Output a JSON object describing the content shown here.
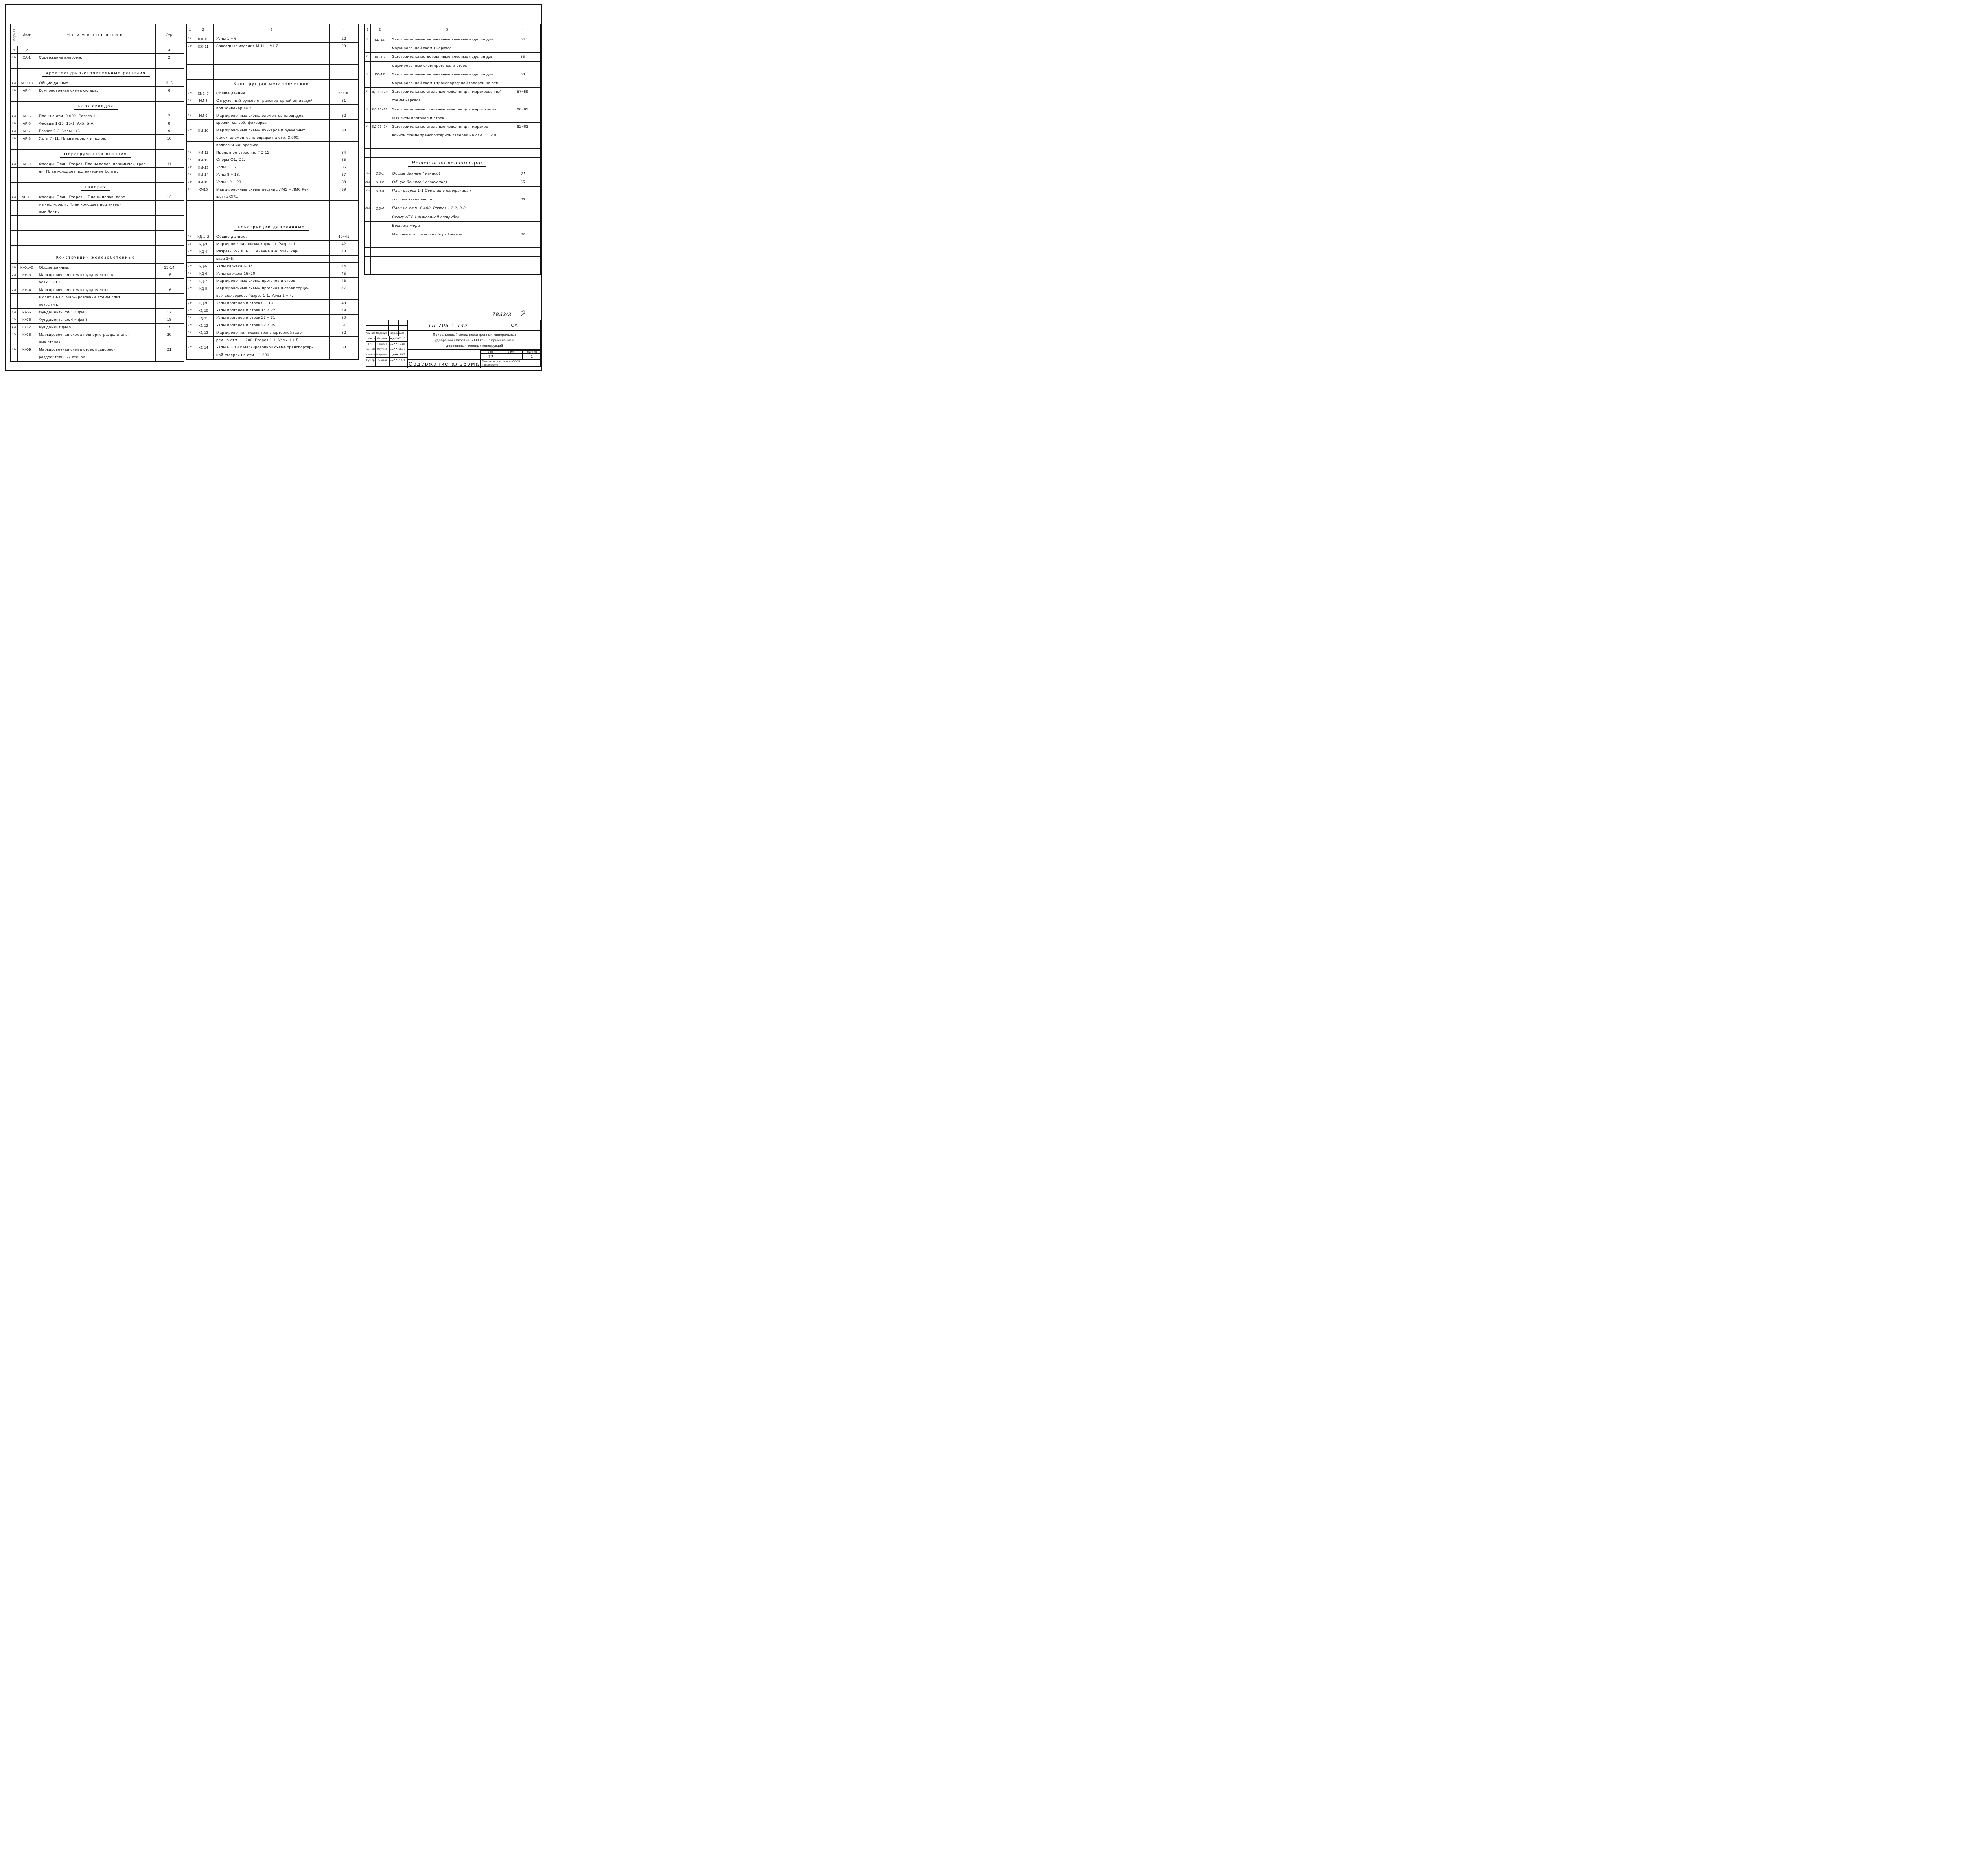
{
  "stamp": {
    "doc_no": "7833/3",
    "page_no": "2",
    "type_label": "ТП 705-1-142",
    "code": "СА",
    "rev_headers": [
      "Изм.",
      "Лист",
      "№ докум.",
      "Подпись",
      "Дата"
    ],
    "signers": [
      {
        "role": "Гл.инж.ин.",
        "name": "Хахалин",
        "date": "15.10"
      },
      {
        "role": "ГИП",
        "name": "Гоголев",
        "date": "15.10."
      },
      {
        "role": "Нач. отд.",
        "name": "Крупков",
        "date": "20.10"
      },
      {
        "role": "Гл. констр.",
        "name": "Морозова",
        "date": "9.10.79"
      },
      {
        "role": "Рук. гр.",
        "name": "Аникин",
        "date": "17.9.79г"
      }
    ],
    "title_lines": [
      "Прирельсовый  склад незатаренных минеральных",
      "удобрений емкостью 5000 тонн с применением",
      "деревянных  клееных  конструкций"
    ],
    "lit_headers": [
      "Лит",
      "Лист",
      "Листов"
    ],
    "lit_values": [
      "ТР",
      "",
      "1"
    ],
    "album_title": "Содержание альбома",
    "org_lines": [
      "Госкомсельхозтехника СССР",
      "Гипропроект"
    ]
  },
  "left_table": {
    "header": {
      "format_label": "Формат",
      "sheet_label": "Лист",
      "name_label": "Наименование",
      "page_label": "Стр."
    },
    "numbers": [
      "1",
      "2",
      "3",
      "4"
    ],
    "rows": [
      [
        "22г",
        "СА-1",
        "Содержание  альбома.",
        "2",
        ""
      ],
      [
        "",
        "",
        "",
        "",
        ""
      ],
      [
        "",
        "",
        "Архитектурно-строительные решения",
        "",
        "s"
      ],
      [
        "22г",
        "АР-1÷3",
        "Общие  данные",
        "3÷5",
        ""
      ],
      [
        "22г",
        "АР-4",
        "Компоновочная схема склада.",
        "6",
        ""
      ],
      [
        "",
        "",
        "",
        "",
        ""
      ],
      [
        "",
        "",
        "Блок складов",
        "",
        "s"
      ],
      [
        "22г",
        "АР-5",
        "План на отм. 0.000.  Разрез 1-1.",
        "7",
        ""
      ],
      [
        "22г",
        "АР-6",
        "Фасады  1-15, 15-1, А-Б, Б-А.",
        "8",
        ""
      ],
      [
        "22г",
        "АР-7",
        "Разрез  2-2.  Узлы  1÷6.",
        "9",
        ""
      ],
      [
        "22г",
        "АР-8",
        "Узлы  7÷11. Планы кровли и полов.",
        "10",
        ""
      ],
      [
        "",
        "",
        "",
        "",
        ""
      ],
      [
        "",
        "",
        "Перегрузочная станция",
        "",
        "s"
      ],
      [
        "22г",
        "АР-9",
        "Фасады. План. Разрез. Планы полов, перемычек, кров-",
        "11",
        ""
      ],
      [
        "",
        "",
        "ли.  План колодцев  под  анкерные  болты.",
        "",
        ""
      ],
      [
        "",
        "",
        "",
        "",
        ""
      ],
      [
        "",
        "",
        "Галерея",
        "",
        "s"
      ],
      [
        "22г",
        "АР-10",
        "Фасады.  План.  Разрезы.  Планы полов, пере-",
        "12",
        ""
      ],
      [
        "",
        "",
        "мычек, кровли.  План  колодцев  под  анкер-",
        "",
        ""
      ],
      [
        "",
        "",
        "ные    болты.",
        "",
        ""
      ],
      [
        "",
        "",
        "",
        "",
        ""
      ],
      [
        "",
        "",
        "",
        "",
        ""
      ],
      [
        "",
        "",
        "",
        "",
        ""
      ],
      [
        "",
        "",
        "",
        "",
        ""
      ],
      [
        "",
        "",
        "",
        "",
        ""
      ],
      [
        "",
        "",
        "Конструкции железобетонные",
        "",
        "s"
      ],
      [
        "22г",
        "КЖ-1÷2",
        "Общие  данные.",
        "13-14",
        ""
      ],
      [
        "22г",
        "КЖ-3",
        "Маркировочная  схема  фундаментов  в",
        "15",
        ""
      ],
      [
        "",
        "",
        "осях  1 - 13.",
        "",
        ""
      ],
      [
        "22г",
        "КЖ-4",
        "Маркировочная  схема  фундаментов",
        "16",
        ""
      ],
      [
        "",
        "",
        "в осях  13-17. Маркировочные  схемы  плит",
        "",
        ""
      ],
      [
        "",
        "",
        "покрытия.",
        "",
        ""
      ],
      [
        "22г",
        "КЖ-5",
        "Фундаменты   фм1 ÷ фм 3.",
        "17",
        ""
      ],
      [
        "22г",
        "КЖ-6",
        "Фундаменты   фм4 ÷ фм 8.",
        "18",
        ""
      ],
      [
        "22г",
        "КЖ-7",
        "Фундамент   фм 9.",
        "19",
        ""
      ],
      [
        "22г",
        "КЖ-8",
        "Маркировочная  схема  подпорно-разделитель-",
        "20",
        ""
      ],
      [
        "",
        "",
        "ных  стенок.",
        "",
        ""
      ],
      [
        "22г",
        "КЖ-9",
        "Маркировочная  схема  стоек  подпорно-",
        "21",
        ""
      ],
      [
        "",
        "",
        "разделительных  стенок.",
        "",
        ""
      ]
    ]
  },
  "middle_table": {
    "numbers": [
      "1",
      "2",
      "3",
      "4"
    ],
    "rows": [
      [
        "22г",
        "КЖ-10",
        "Узлы  1 ÷ 6.",
        "22",
        ""
      ],
      [
        "22г",
        "КЖ-11",
        "Закладные  изделия  МН1 ÷ МН7.",
        "23",
        ""
      ],
      [
        "",
        "",
        "",
        "",
        ""
      ],
      [
        "",
        "",
        "",
        "",
        ""
      ],
      [
        "",
        "",
        "",
        "",
        ""
      ],
      [
        "",
        "",
        "",
        "",
        ""
      ],
      [
        "",
        "",
        "Конструкции металлические",
        "",
        "s"
      ],
      [
        "22г",
        "КМ1÷7",
        "Общие  данные.",
        "24÷30",
        ""
      ],
      [
        "22г",
        "КМ-8",
        "Отгрузочный бункер с транспортерной эстакадой",
        "31",
        ""
      ],
      [
        "",
        "",
        "под  конвейер  № 2.",
        "",
        ""
      ],
      [
        "22г",
        "КМ-9",
        "Маркировочные  схемы  элементов  площадок,",
        "32",
        ""
      ],
      [
        "",
        "",
        "кровли,  связей,  фахверка.",
        "",
        ""
      ],
      [
        "22г",
        "КМ-10",
        "Маркировочные  схемы  бункеров  и  бункерных",
        "33",
        ""
      ],
      [
        "",
        "",
        "балок,   элементов  площадки  на  отм. 3,000,",
        "",
        ""
      ],
      [
        "",
        "",
        "подвески   монорельса.",
        "",
        ""
      ],
      [
        "22г",
        "КМ-11",
        "Пролетное  строение   ПС 12.",
        "34",
        ""
      ],
      [
        "22г",
        "КМ-12",
        "Опоры  О1,  О2.",
        "35",
        ""
      ],
      [
        "22г",
        "КМ-13",
        "Узлы  1 ÷ 7.",
        "36",
        ""
      ],
      [
        "22г",
        "КМ-14",
        "Узлы  8 ÷ 18.",
        "37",
        ""
      ],
      [
        "22г",
        "КМ-15",
        "Узлы  19 ÷ 23.",
        "38",
        ""
      ],
      [
        "22г",
        "КМ16",
        "Маркировочные схемы лестниц  ЛМ1 – ЛМ6  Ре-",
        "39",
        ""
      ],
      [
        "",
        "",
        "шетка  ОР1.",
        "",
        ""
      ],
      [
        "",
        "",
        "",
        "",
        ""
      ],
      [
        "",
        "",
        "",
        "",
        ""
      ],
      [
        "",
        "",
        "",
        "",
        ""
      ],
      [
        "",
        "",
        "Конструкции   деревянные",
        "",
        "s"
      ],
      [
        "22г",
        "КД-1÷2",
        "Общие  данные.",
        "40÷41",
        ""
      ],
      [
        "22г",
        "КД-3",
        "Маркировочная  схема  каркаса.  Разрез 1-1.",
        "42",
        ""
      ],
      [
        "22г",
        "КД-4",
        "Разрезы  2-2  и  3-3. Сечение  а-а.  Узлы  кар-",
        "43",
        ""
      ],
      [
        "",
        "",
        "каса  1÷5.",
        "",
        ""
      ],
      [
        "22г",
        "КД-5",
        "Узлы  каркаса  6÷14.",
        "44",
        ""
      ],
      [
        "22г",
        "КД-6",
        "Узлы  каркаса  15÷20.",
        "45",
        ""
      ],
      [
        "22г",
        "КД-7",
        "Маркировочные  схемы  прогонов  и  стоек",
        "46",
        ""
      ],
      [
        "22г",
        "КД-8",
        "Маркировочные  схемы  прогонов и стоек торцо-",
        "47",
        ""
      ],
      [
        "",
        "",
        "вых   фахверков.  Разрез  1-1.  Узлы 1 ÷ 4.",
        "",
        ""
      ],
      [
        "22г",
        "КД-9",
        "Узлы  прогонов  и  стоек   5 ÷ 13.",
        "48",
        ""
      ],
      [
        "22г",
        "КД-10",
        "Узлы  прогонов  и  стоек  14 ÷ 22.",
        "49",
        ""
      ],
      [
        "22г",
        "КД-11",
        "Узлы  прогонов  и  стоек  23 ÷ 31.",
        "50",
        ""
      ],
      [
        "22г",
        "КД-12",
        "Узлы  прогонов  и  стоек  32 ÷ 35.",
        "51",
        ""
      ],
      [
        "22г",
        "КД-13",
        "Маркировочная  схема  транспортерной  гале-",
        "52",
        ""
      ],
      [
        "",
        "",
        "реи  на  отм. 11.200.  Разрез 1-1.  Узлы   1 ÷ 5.",
        "",
        ""
      ],
      [
        "22г",
        "КД-14",
        "Узлы  6 ÷ 13  к  маркировочной  схеме  транспортер-",
        "53",
        ""
      ],
      [
        "",
        "",
        "ной  галереи  на  отм.  11.200.",
        "",
        ""
      ]
    ]
  },
  "right_table": {
    "numbers": [
      "1",
      "2",
      "3",
      "4"
    ],
    "rows": [
      [
        "22г",
        "КД-15",
        "Заготовительные деревянные клееные изделия для",
        "54",
        ""
      ],
      [
        "",
        "",
        "маркировочной  схемы  каркаса.",
        "",
        ""
      ],
      [
        "22г",
        "КД-16",
        "Заготовительные деревянные клееные изделия для",
        "55",
        ""
      ],
      [
        "",
        "",
        "маркировочных  схем  прогонов  и  стоек",
        "",
        ""
      ],
      [
        "22г",
        "КД-17",
        "Заготовительные деревянные клееные изделия для",
        "56",
        ""
      ],
      [
        "",
        "",
        "маркировочной схемы транспортерной галереи на отм 11.200.",
        "",
        ""
      ],
      [
        "22г",
        "КД-18÷20",
        "Заготовительные стальные изделия  для  маркировочной",
        "57÷59",
        ""
      ],
      [
        "",
        "",
        "схемы  каркаса.",
        "",
        ""
      ],
      [
        "22г",
        "КД-21÷22",
        "Заготовительные стальные изделия для маркировоч-",
        "60÷61",
        ""
      ],
      [
        "",
        "",
        "ных  схем   прогонов  и  стоек.",
        "",
        ""
      ],
      [
        "22г",
        "КД-23÷24",
        "Заготовительные стальные изделия для маркиро-",
        "62÷63",
        ""
      ],
      [
        "",
        "",
        "вочной  схемы  транспортерной  галереи  на отм. 11.200.",
        "",
        ""
      ],
      [
        "",
        "",
        "",
        "",
        ""
      ],
      [
        "",
        "",
        "",
        "",
        ""
      ],
      [
        "",
        "",
        "Решения  по  вентиляции",
        "",
        "si"
      ],
      [
        "22г",
        "ОВ-1",
        "Общие      данные   ( начало)",
        "64",
        "i"
      ],
      [
        "22г",
        "ОВ-2",
        "Общие      данные   ( окончание)",
        "65",
        "i"
      ],
      [
        "22г",
        "ОВ-3",
        "План   разрез 1-1  Сводная  спецификация",
        "",
        "i"
      ],
      [
        "",
        "",
        "систем  вентиляции",
        "66",
        "i"
      ],
      [
        "22г",
        "ОВ-4",
        "План  на  отм.  6.400.  Разрезы 2-2, 3-3",
        "",
        "i"
      ],
      [
        "",
        "",
        "Схему  АТУ-1   выхлопной  патрубок",
        "",
        "i"
      ],
      [
        "",
        "",
        "Вентилятора",
        "",
        "i"
      ],
      [
        "",
        "",
        "Местные  отсосы  от  оборудования",
        "67",
        "i"
      ],
      [
        "",
        "",
        "",
        "",
        ""
      ],
      [
        "",
        "",
        "",
        "",
        ""
      ],
      [
        "",
        "",
        "",
        "",
        ""
      ],
      [
        "",
        "",
        "",
        "",
        ""
      ]
    ]
  }
}
